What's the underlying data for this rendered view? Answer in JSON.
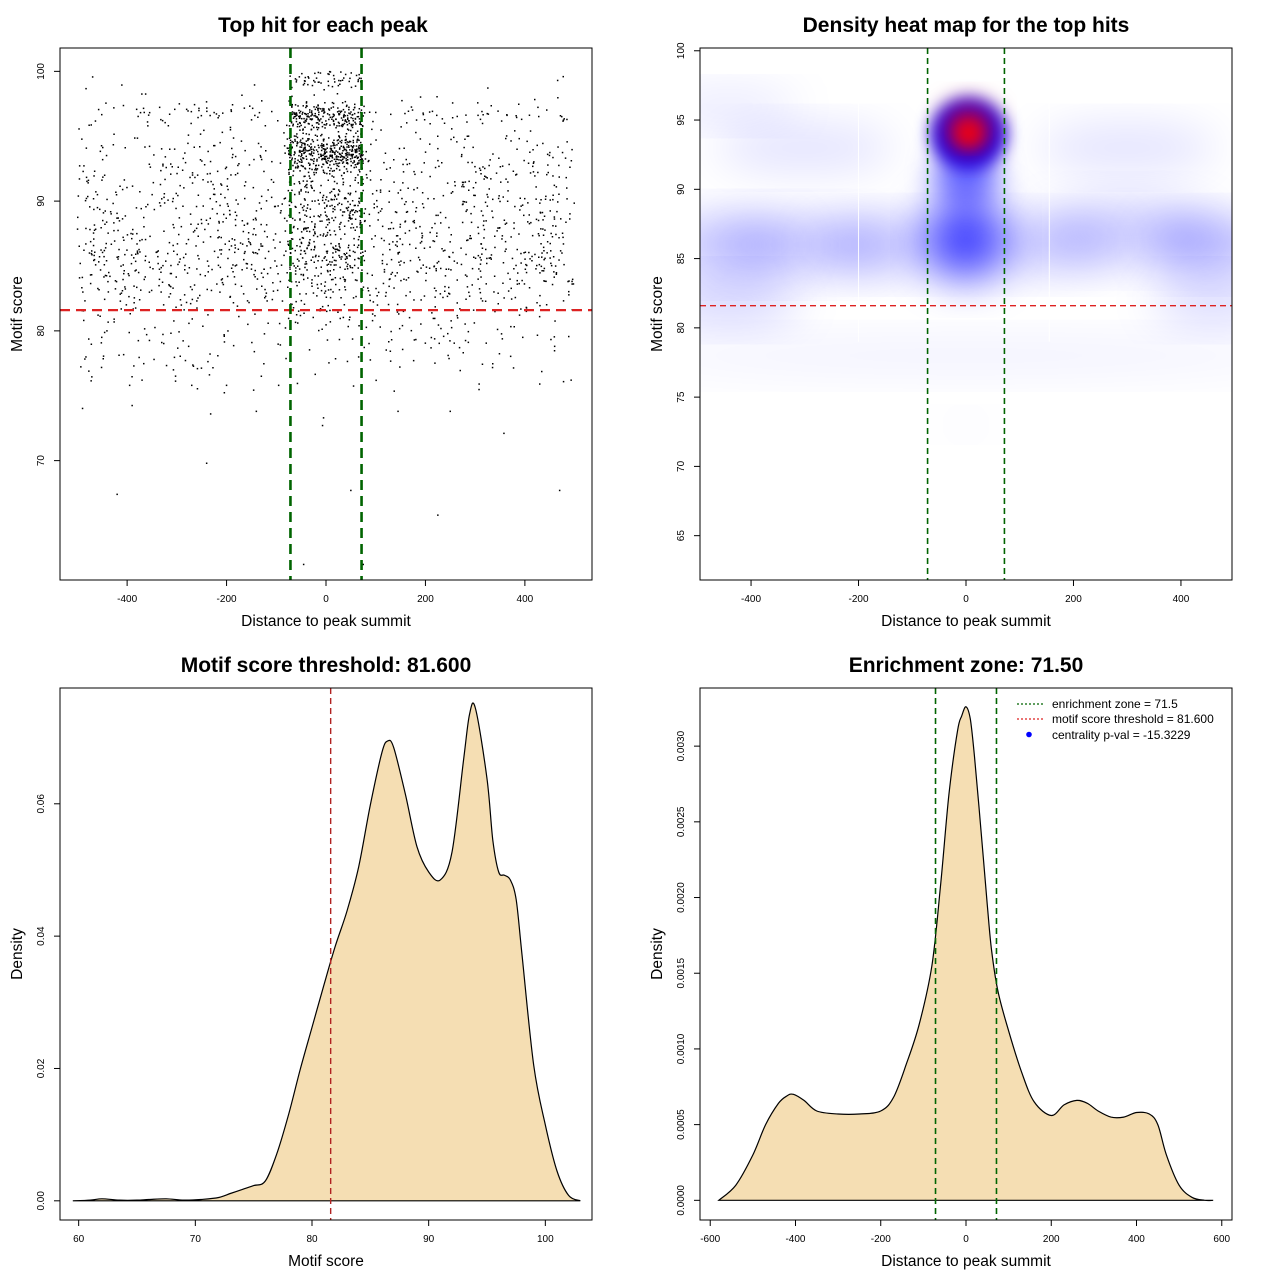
{
  "chart_data": [
    {
      "id": "scatter",
      "type": "scatter",
      "title": "Top hit for each peak",
      "xlabel": "Distance to peak summit",
      "ylabel": "Motif score",
      "xlim": [
        -535,
        535
      ],
      "ylim": [
        60.8,
        101.8
      ],
      "xticks": [
        -400,
        -200,
        0,
        200,
        400
      ],
      "xtick_labels": [
        "-400",
        "-200",
        "0",
        "200",
        "400"
      ],
      "yticks": [
        70,
        80,
        90,
        100
      ],
      "ytick_labels": [
        "70",
        "80",
        "90",
        "100"
      ],
      "point_color": "#000000",
      "threshold_y": 81.6,
      "threshold_color": "#dd2222",
      "zone_x": [
        -71.5,
        71.5
      ],
      "zone_color": "#006400",
      "clusters": [
        {
          "x_min": -500,
          "x_max": 500,
          "y_center": 85.5,
          "y_sd": 3.2,
          "n": 1100
        },
        {
          "x_min": -500,
          "x_max": 500,
          "y_center": 92.5,
          "y_sd": 2.6,
          "n": 420
        },
        {
          "x_min": -480,
          "x_max": 480,
          "y_center": 96.8,
          "y_sd": 0.5,
          "n": 110
        },
        {
          "x_min": -75,
          "x_max": 75,
          "y_center": 93.8,
          "y_sd": 0.7,
          "n": 380
        },
        {
          "x_min": -75,
          "x_max": 75,
          "y_center": 96.5,
          "y_sd": 0.5,
          "n": 220
        },
        {
          "x_min": -75,
          "x_max": 75,
          "y_center": 88.5,
          "y_sd": 2.5,
          "n": 260
        },
        {
          "x_min": -75,
          "x_max": 75,
          "y_center": 99.4,
          "y_sd": 0.35,
          "n": 55
        },
        {
          "x_min": -500,
          "x_max": 500,
          "y_center": 78.5,
          "y_sd": 2.0,
          "n": 110
        }
      ],
      "outliers": [
        [
          -420,
          67.4
        ],
        [
          -240,
          69.8
        ],
        [
          225,
          65.8
        ],
        [
          470,
          67.7
        ],
        [
          -45,
          62.0
        ],
        [
          75,
          62.0
        ],
        [
          -232,
          73.6
        ],
        [
          -5,
          73.3
        ],
        [
          358,
          72.1
        ],
        [
          145,
          73.8
        ],
        [
          -140,
          73.8
        ],
        [
          250,
          73.8
        ],
        [
          50,
          67.7
        ],
        [
          -395,
          75.8
        ],
        [
          -370,
          76.2
        ],
        [
          -270,
          75.8
        ],
        [
          -200,
          75.8
        ],
        [
          -130,
          76.5
        ],
        [
          430,
          75.9
        ],
        [
          493,
          76.2
        ],
        [
          308,
          75.9
        ],
        [
          -7,
          72.7
        ]
      ]
    },
    {
      "id": "heatmap",
      "type": "heatmap",
      "title": "Density heat map for the top hits",
      "xlabel": "Distance to peak summit",
      "ylabel": "Motif score",
      "xlim": [
        -495,
        495
      ],
      "ylim": [
        61.8,
        100.2
      ],
      "xticks": [
        -400,
        -200,
        0,
        200,
        400
      ],
      "xtick_labels": [
        "-400",
        "-200",
        "0",
        "200",
        "400"
      ],
      "yticks": [
        65,
        70,
        75,
        80,
        85,
        90,
        95,
        100
      ],
      "ytick_labels": [
        "65",
        "70",
        "75",
        "80",
        "85",
        "90",
        "95",
        "100"
      ],
      "threshold_y": 81.6,
      "threshold_color": "#dd2222",
      "zone_x": [
        -71.5,
        71.5
      ],
      "zone_color": "#006400",
      "bin_edges_x": [
        -200,
        155
      ],
      "density_peak": [
        5,
        94
      ],
      "color_scale": [
        "#ffffff",
        "#0000ff",
        "#ff0000"
      ]
    },
    {
      "id": "score-density",
      "type": "area",
      "title": "Motif score threshold: 81.600",
      "xlabel": "Motif score",
      "ylabel": "Density",
      "xlim": [
        58.4,
        104.0
      ],
      "ylim": [
        -0.0029,
        0.0775
      ],
      "xticks": [
        60,
        70,
        80,
        90,
        100
      ],
      "xtick_labels": [
        "60",
        "70",
        "80",
        "90",
        "100"
      ],
      "yticks": [
        0.0,
        0.02,
        0.04,
        0.06
      ],
      "ytick_labels": [
        "0.00",
        "0.02",
        "0.04",
        "0.06"
      ],
      "fill_color": "#f5deb3",
      "threshold_x": 81.6,
      "threshold_color": "#b22222",
      "x": [
        59.5,
        61,
        62,
        63.5,
        65,
        66,
        67.5,
        69,
        70.5,
        72,
        73,
        74,
        75,
        76,
        77,
        78,
        79,
        80,
        81,
        82,
        83,
        84,
        85,
        86,
        86.5,
        87,
        88,
        89,
        90,
        91,
        92,
        93,
        93.5,
        94,
        95,
        95.5,
        96,
        96.5,
        97,
        97.5,
        98,
        99,
        100,
        101,
        102,
        103
      ],
      "y": [
        0.0,
        0.0001,
        0.0003,
        0.0001,
        0.0001,
        0.0002,
        0.0003,
        0.0001,
        0.0002,
        0.0005,
        0.0011,
        0.0017,
        0.0023,
        0.003,
        0.0072,
        0.0131,
        0.0199,
        0.0262,
        0.0325,
        0.0385,
        0.0438,
        0.0505,
        0.0598,
        0.0678,
        0.0695,
        0.0685,
        0.0615,
        0.0535,
        0.0497,
        0.0485,
        0.0527,
        0.0668,
        0.0735,
        0.0745,
        0.0638,
        0.0545,
        0.0497,
        0.0492,
        0.0485,
        0.0455,
        0.0372,
        0.0205,
        0.0115,
        0.0045,
        0.0008,
        0.0
      ]
    },
    {
      "id": "distance-density",
      "type": "area",
      "title": "Enrichment zone: 71.50",
      "xlabel": "Distance to peak summit",
      "ylabel": "Density",
      "xlim": [
        -624,
        624
      ],
      "ylim": [
        -0.00013,
        0.003384
      ],
      "xticks": [
        -600,
        -400,
        -200,
        0,
        200,
        400,
        600
      ],
      "xtick_labels": [
        "-600",
        "-400",
        "-200",
        "0",
        "200",
        "400",
        "600"
      ],
      "yticks": [
        0.0,
        0.0005,
        0.001,
        0.0015,
        0.002,
        0.0025,
        0.003
      ],
      "ytick_labels": [
        "0.0000",
        "0.0005",
        "0.0010",
        "0.0015",
        "0.0020",
        "0.0025",
        "0.0030"
      ],
      "fill_color": "#f5deb3",
      "zone_x": [
        -71.5,
        71.5
      ],
      "zone_color": "#006400",
      "x": [
        -580,
        -540,
        -500,
        -470,
        -440,
        -420,
        -405,
        -380,
        -350,
        -300,
        -250,
        -200,
        -170,
        -140,
        -110,
        -80,
        -60,
        -40,
        -20,
        -10,
        0,
        10,
        20,
        35,
        50,
        60,
        75,
        100,
        130,
        160,
        200,
        230,
        260,
        285,
        310,
        340,
        370,
        400,
        430,
        450,
        470,
        500,
        530,
        560,
        580
      ],
      "y": [
        0.0,
        0.0001,
        0.0003,
        0.0005,
        0.00064,
        0.00069,
        0.0007,
        0.00066,
        0.00059,
        0.00057,
        0.00057,
        0.00059,
        0.00068,
        0.0009,
        0.00116,
        0.00155,
        0.00207,
        0.00268,
        0.0031,
        0.0032,
        0.00326,
        0.00318,
        0.00293,
        0.00245,
        0.00195,
        0.00165,
        0.00138,
        0.00112,
        0.00085,
        0.00065,
        0.00056,
        0.00063,
        0.00066,
        0.00064,
        0.00059,
        0.00055,
        0.00055,
        0.00058,
        0.00057,
        0.0005,
        0.0003,
        0.0001,
        2e-05,
        0.0,
        0.0
      ],
      "legend": {
        "position": "top-right",
        "entries": [
          {
            "label": "enrichment zone = 71.5",
            "color": "#006400",
            "style": "dotted-line"
          },
          {
            "label": "motif score threshold = 81.600",
            "color": "#dd2222",
            "style": "dotted-line"
          },
          {
            "label": "centrality p-val = -15.3229",
            "color": "#0000ff",
            "style": "point"
          }
        ]
      }
    }
  ]
}
